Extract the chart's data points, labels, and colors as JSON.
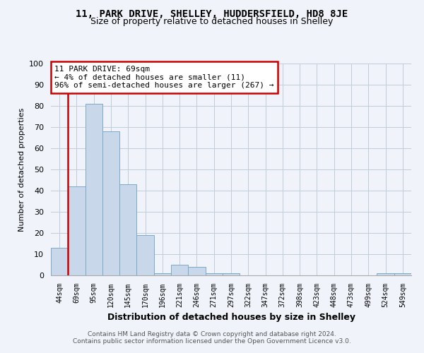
{
  "title_line1": "11, PARK DRIVE, SHELLEY, HUDDERSFIELD, HD8 8JE",
  "title_line2": "Size of property relative to detached houses in Shelley",
  "xlabel": "Distribution of detached houses by size in Shelley",
  "ylabel": "Number of detached properties",
  "categories": [
    "44sqm",
    "69sqm",
    "95sqm",
    "120sqm",
    "145sqm",
    "170sqm",
    "196sqm",
    "221sqm",
    "246sqm",
    "271sqm",
    "297sqm",
    "322sqm",
    "347sqm",
    "372sqm",
    "398sqm",
    "423sqm",
    "448sqm",
    "473sqm",
    "499sqm",
    "524sqm",
    "549sqm"
  ],
  "values": [
    13,
    42,
    81,
    68,
    43,
    19,
    1,
    5,
    4,
    1,
    1,
    0,
    0,
    0,
    0,
    0,
    0,
    0,
    0,
    1,
    1
  ],
  "bar_color": "#c8d8ea",
  "bar_edge_color": "#7aaac8",
  "highlight_bar_index": 1,
  "highlight_line_color": "#cc0000",
  "ylim": [
    0,
    100
  ],
  "yticks": [
    0,
    10,
    20,
    30,
    40,
    50,
    60,
    70,
    80,
    90,
    100
  ],
  "annotation_line1": "11 PARK DRIVE: 69sqm",
  "annotation_line2": "← 4% of detached houses are smaller (11)",
  "annotation_line3": "96% of semi-detached houses are larger (267) →",
  "annotation_box_color": "#ffffff",
  "annotation_box_edge_color": "#cc0000",
  "footer_line1": "Contains HM Land Registry data © Crown copyright and database right 2024.",
  "footer_line2": "Contains public sector information licensed under the Open Government Licence v3.0.",
  "background_color": "#f0f4fa",
  "grid_color": "#c0ccd8"
}
